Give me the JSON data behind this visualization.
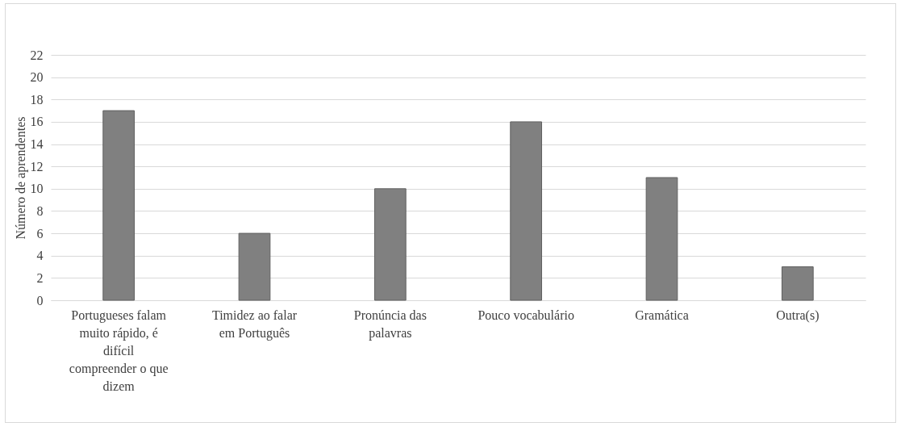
{
  "chart_data": {
    "type": "bar",
    "ylabel": "Número de aprendentes",
    "categories": [
      "Portugueses falam muito rápido, é difícil compreender o que dizem",
      "Timidez ao falar em Português",
      "Pronúncia das palavras",
      "Pouco vocabulário",
      "Gramática",
      "Outra(s)"
    ],
    "values": [
      17,
      6,
      10,
      16,
      11,
      3
    ],
    "color": "#808080",
    "ylim": [
      0,
      22
    ],
    "yticks": [
      0,
      2,
      4,
      6,
      8,
      10,
      12,
      14,
      16,
      18,
      20,
      22
    ],
    "grid": "y"
  }
}
